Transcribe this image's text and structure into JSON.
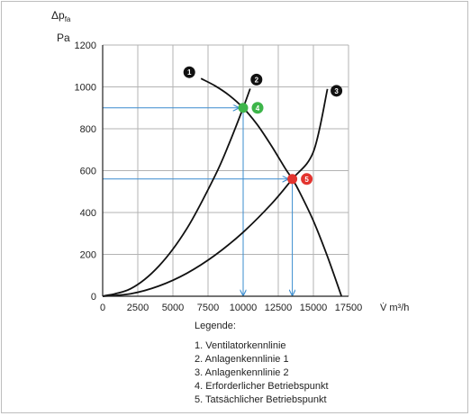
{
  "chart_data": {
    "type": "line",
    "title": "",
    "ylabel_symbol": "Δp",
    "ylabel_sub": "fa",
    "ylabel_unit": "Pa",
    "xlabel": "V̇ m³/h",
    "xlim": [
      0,
      17500
    ],
    "ylim": [
      0,
      1200
    ],
    "xticks": [
      0,
      2500,
      5000,
      7500,
      10000,
      12500,
      15000,
      17500
    ],
    "yticks": [
      0,
      200,
      400,
      600,
      800,
      1000,
      1200
    ],
    "grid": true,
    "series": [
      {
        "id": "1",
        "color": "#111111",
        "x": [
          7000,
          8000,
          9000,
          10000,
          11000,
          12000,
          13000,
          13500,
          14000,
          15000,
          16000,
          17000
        ],
        "y": [
          1040,
          1005,
          960,
          900,
          820,
          720,
          610,
          560,
          500,
          360,
          190,
          0
        ]
      },
      {
        "id": "2",
        "color": "#111111",
        "x": [
          0,
          2000,
          4000,
          6000,
          8000,
          9000,
          10000,
          10500
        ],
        "y": [
          0,
          36,
          144,
          324,
          576,
          729,
          900,
          992
        ]
      },
      {
        "id": "3",
        "color": "#111111",
        "x": [
          0,
          2000,
          4000,
          6000,
          8000,
          10000,
          12000,
          13500,
          15000,
          16000
        ],
        "y": [
          0,
          12,
          49,
          110,
          196,
          306,
          440,
          560,
          690,
          990
        ]
      }
    ],
    "operating_points": [
      {
        "id": "4",
        "x": 10000,
        "y": 900,
        "color": "#3db54a"
      },
      {
        "id": "5",
        "x": 13500,
        "y": 560,
        "color": "#e3342f"
      }
    ],
    "guide_color": "#3a8ccf"
  },
  "legend": {
    "title": "Legende:",
    "items": [
      "1. Ventilatorkennlinie",
      "2. Anlagenkennlinie 1",
      "3. Anlagenkennlinie 2",
      "4. Erforderlicher Betriebspunkt",
      "5. Tatsächlicher Betriebspunkt"
    ]
  }
}
